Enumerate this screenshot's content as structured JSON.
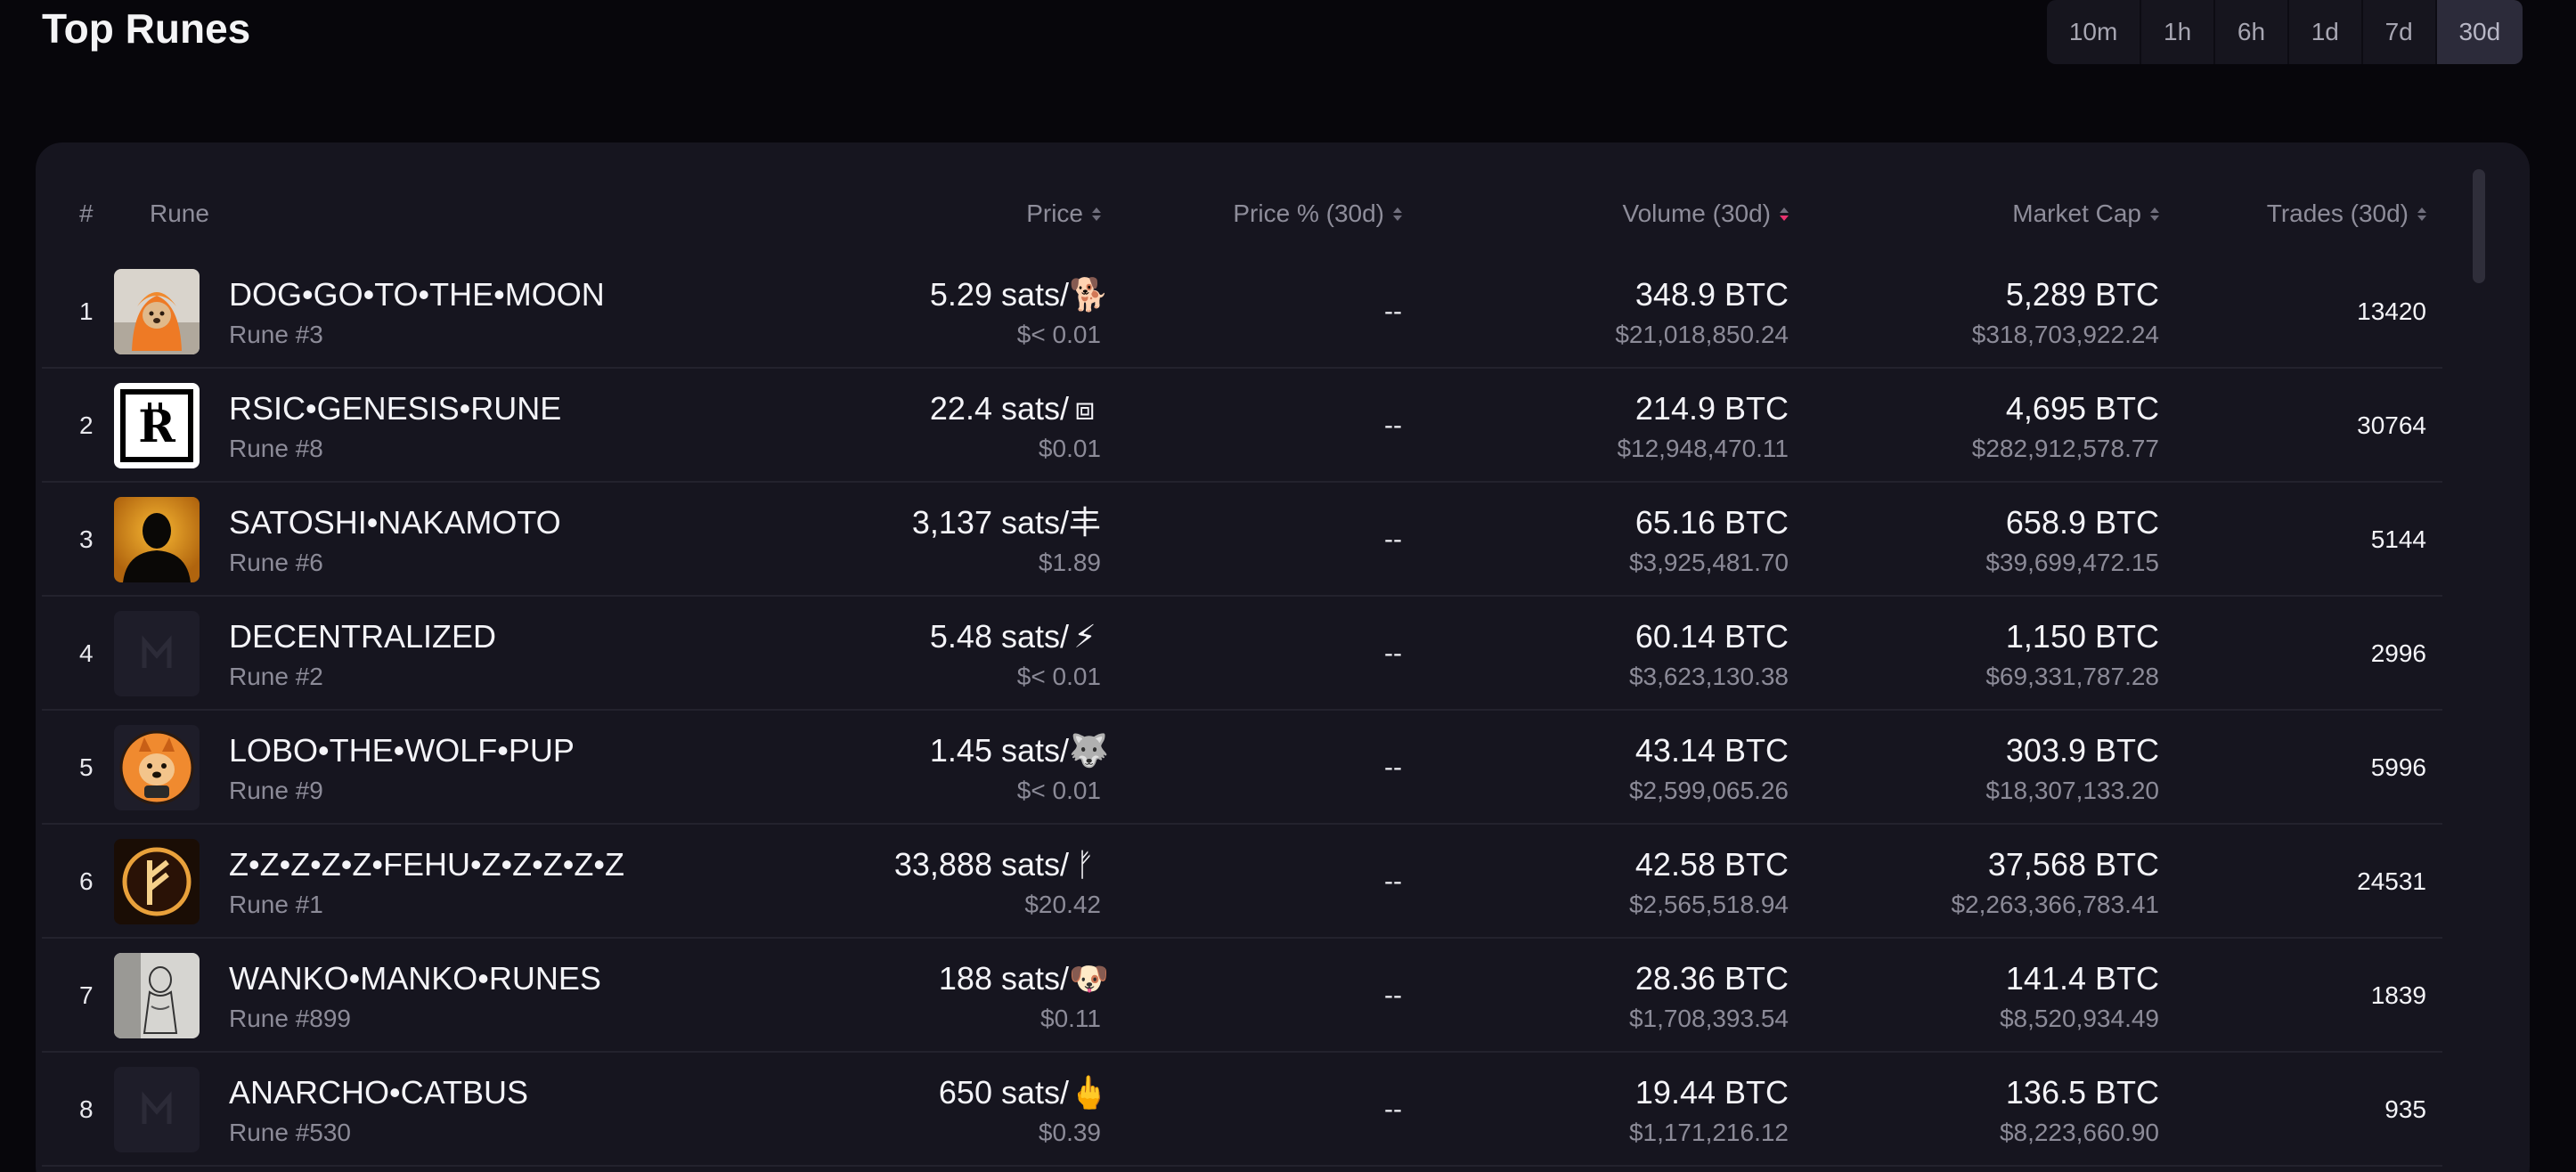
{
  "page": {
    "title": "Top Runes"
  },
  "timeframes": {
    "options": [
      "10m",
      "1h",
      "6h",
      "1d",
      "7d",
      "30d"
    ],
    "selected": "30d"
  },
  "table": {
    "headers": {
      "rank": "#",
      "rune": "Rune",
      "price": "Price",
      "price_change": "Price % (30d)",
      "volume": "Volume (30d)",
      "market_cap": "Market Cap",
      "trades": "Trades (30d)"
    },
    "rows": [
      {
        "rank": "1",
        "name": "DOG•GO•TO•THE•MOON",
        "number": "Rune #3",
        "price": "5.29 sats/",
        "symbol": "🐕",
        "price_usd": "$< 0.01",
        "change": "--",
        "volume": "348.9 BTC",
        "volume_usd": "$21,018,850.24",
        "market_cap": "5,289 BTC",
        "market_cap_usd": "$318,703,922.24",
        "trades": "13420",
        "thumb": "dog-hoodie-image"
      },
      {
        "rank": "2",
        "name": "RSIC•GENESIS•RUNE",
        "number": "Rune #8",
        "price": "22.4 sats/",
        "symbol": "⧈",
        "price_usd": "$0.01",
        "change": "--",
        "volume": "214.9 BTC",
        "volume_usd": "$12,948,470.11",
        "market_cap": "4,695 BTC",
        "market_cap_usd": "$282,912,578.77",
        "trades": "30764",
        "thumb": "rsic-logo"
      },
      {
        "rank": "3",
        "name": "SATOSHI•NAKAMOTO",
        "number": "Rune #6",
        "price": "3,137 sats/",
        "symbol": "丰",
        "price_usd": "$1.89",
        "change": "--",
        "volume": "65.16 BTC",
        "volume_usd": "$3,925,481.70",
        "market_cap": "658.9 BTC",
        "market_cap_usd": "$39,699,472.15",
        "trades": "5144",
        "thumb": "silhouette-image"
      },
      {
        "rank": "4",
        "name": "DECENTRALIZED",
        "number": "Rune #2",
        "price": "5.48 sats/",
        "symbol": "⚡",
        "price_usd": "$< 0.01",
        "change": "--",
        "volume": "60.14 BTC",
        "volume_usd": "$3,623,130.38",
        "market_cap": "1,150 BTC",
        "market_cap_usd": "$69,331,787.28",
        "trades": "2996",
        "thumb": "placeholder-logo"
      },
      {
        "rank": "5",
        "name": "LOBO•THE•WOLF•PUP",
        "number": "Rune #9",
        "price": "1.45 sats/",
        "symbol": "🐺",
        "price_usd": "$< 0.01",
        "change": "--",
        "volume": "43.14 BTC",
        "volume_usd": "$2,599,065.26",
        "market_cap": "303.9 BTC",
        "market_cap_usd": "$18,307,133.20",
        "trades": "5996",
        "thumb": "wolf-pup-image"
      },
      {
        "rank": "6",
        "name": "Z•Z•Z•Z•Z•FEHU•Z•Z•Z•Z•Z",
        "number": "Rune #1",
        "price": "33,888 sats/",
        "symbol": "ᚠ",
        "price_usd": "$20.42",
        "change": "--",
        "volume": "42.58 BTC",
        "volume_usd": "$2,565,518.94",
        "market_cap": "37,568 BTC",
        "market_cap_usd": "$2,263,366,783.41",
        "trades": "24531",
        "thumb": "fehu-rune-logo"
      },
      {
        "rank": "7",
        "name": "WANKO•MANKO•RUNES",
        "number": "Rune #899",
        "price": "188 sats/",
        "symbol": "🐶",
        "price_usd": "$0.11",
        "change": "--",
        "volume": "28.36 BTC",
        "volume_usd": "$1,708,393.54",
        "market_cap": "141.4 BTC",
        "market_cap_usd": "$8,520,934.49",
        "trades": "1839",
        "thumb": "sketch-image"
      },
      {
        "rank": "8",
        "name": "ANARCHO•CATBUS",
        "number": "Rune #530",
        "price": "650 sats/",
        "symbol": "🖕",
        "price_usd": "$0.39",
        "change": "--",
        "volume": "19.44 BTC",
        "volume_usd": "$1,171,216.12",
        "market_cap": "136.5 BTC",
        "market_cap_usd": "$8,223,660.90",
        "trades": "935",
        "thumb": "placeholder-logo"
      }
    ]
  },
  "colors": {
    "background": "#07060b",
    "panel": "#16151f",
    "sort_active": "#e8326f"
  }
}
